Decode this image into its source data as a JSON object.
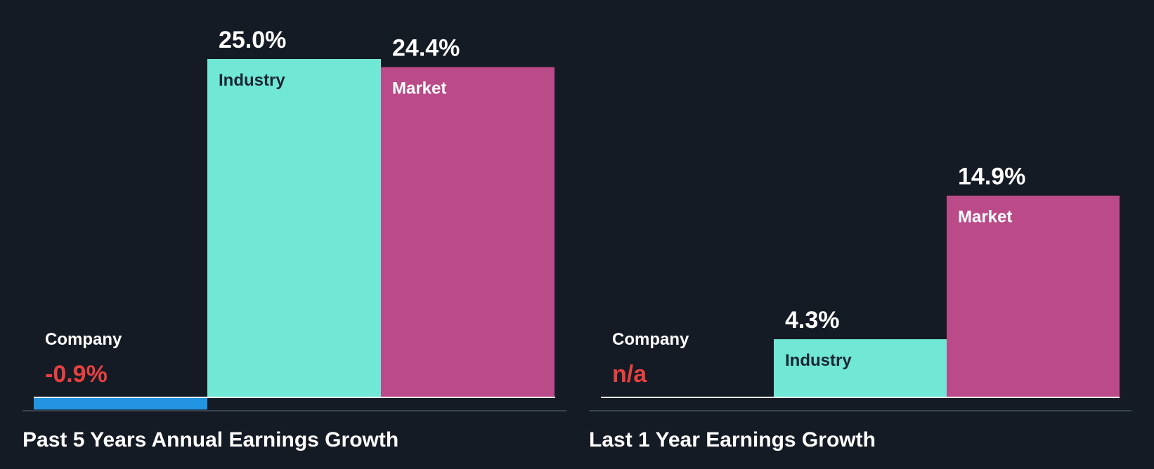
{
  "colors": {
    "background": "#151b24",
    "company": "#2394df",
    "industry": "#71e7d6",
    "market": "#ba4a88",
    "negative": "#e64141",
    "text_light": "#ffffff",
    "text_dark": "#1b2633",
    "divider": "#3a4350"
  },
  "chart_data": [
    {
      "type": "bar",
      "title": "Past 5 Years Annual Earnings Growth",
      "categories": [
        "Company",
        "Industry",
        "Market"
      ],
      "values": [
        -0.9,
        25.0,
        24.4
      ],
      "value_labels": [
        "-0.9%",
        "25.0%",
        "24.4%"
      ],
      "unit": "%",
      "ylim": [
        -0.9,
        25.0
      ]
    },
    {
      "type": "bar",
      "title": "Last 1 Year Earnings Growth",
      "categories": [
        "Company",
        "Industry",
        "Market"
      ],
      "values": [
        null,
        4.3,
        14.9
      ],
      "value_labels": [
        "n/a",
        "4.3%",
        "14.9%"
      ],
      "unit": "%",
      "ylim": [
        0,
        25.0
      ]
    }
  ]
}
